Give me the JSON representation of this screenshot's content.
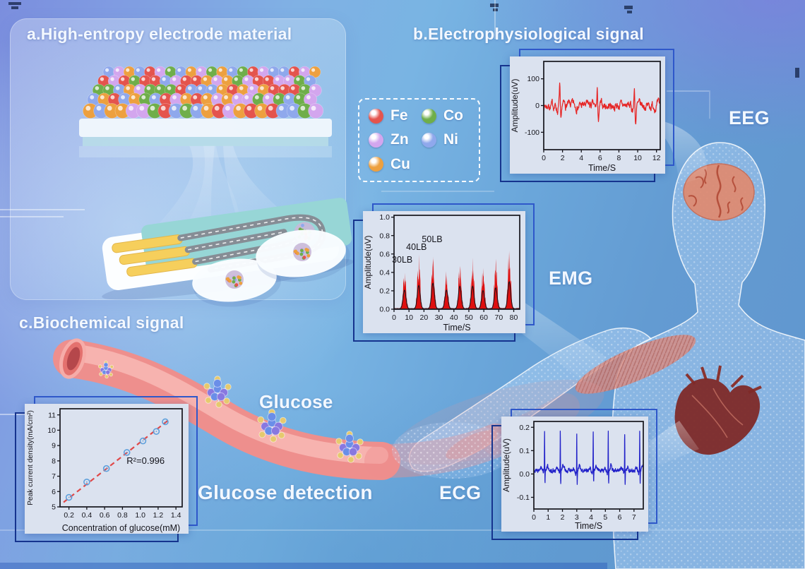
{
  "figure": {
    "panel_a_title": "a.High-entropy electrode material",
    "panel_b_title": "b.Electrophysiological signal",
    "panel_c_title": "c.Biochemical signal",
    "labels": {
      "eeg": "EEG",
      "emg": "EMG",
      "ecg": "ECG",
      "glucose": "Glucose",
      "glucose_detection": "Glucose detection"
    }
  },
  "legend": {
    "items": [
      {
        "symbol": "Fe",
        "color": "#e4544d"
      },
      {
        "symbol": "Co",
        "color": "#6fae4a"
      },
      {
        "symbol": "Zn",
        "color": "#d3a6ee"
      },
      {
        "symbol": "Ni",
        "color": "#8fa8ec"
      },
      {
        "symbol": "Cu",
        "color": "#eda03f"
      }
    ]
  },
  "colors": {
    "chart_frame_blue": "#2c52c2",
    "chart_surface": "#dbe2ef",
    "eeg_line": "#e62626",
    "emg_fill": "#de0f0f",
    "ecg_line": "#2121c9",
    "glucose_marker": "#5fa0dc",
    "glucose_fit": "#e04848",
    "vessel_pink": "#ee8f8d",
    "body_mesh_blue": "#bcd8fa"
  },
  "chart_data": [
    {
      "id": "eeg",
      "type": "line",
      "generator": "eeg",
      "xlabel": "Time/S",
      "ylabel": "Amplitude(uV)",
      "xlim": [
        0,
        12.4
      ],
      "ylim": [
        -165,
        165
      ],
      "xticks": [
        0,
        2,
        4,
        6,
        8,
        10,
        12
      ],
      "xtick_labels": [
        "0",
        "2",
        "4",
        "6",
        "8",
        "10",
        "12"
      ],
      "yticks": [
        -100,
        0,
        100
      ],
      "ytick_labels": [
        "-100",
        "0",
        "100"
      ],
      "line_color": "#e62626",
      "seed": 7,
      "noise": 9,
      "spikes": [
        [
          1.7,
          82,
          -74
        ],
        [
          5.7,
          52,
          -56
        ],
        [
          9.65,
          63,
          -62
        ]
      ],
      "annotations": []
    },
    {
      "id": "emg",
      "type": "bursts",
      "generator": "emg",
      "xlabel": "Time/S",
      "ylabel": "Amplitude(uV)",
      "xlim": [
        0,
        84
      ],
      "ylim": [
        0,
        1.02
      ],
      "xticks": [
        0,
        10,
        20,
        30,
        40,
        50,
        60,
        70,
        80
      ],
      "xtick_labels": [
        "0",
        "10",
        "20",
        "30",
        "40",
        "50",
        "60",
        "70",
        "80"
      ],
      "yticks": [
        0,
        0.2,
        0.4,
        0.6,
        0.8,
        1.0
      ],
      "ytick_labels": [
        "0.0",
        "0.2",
        "0.4",
        "0.6",
        "0.8",
        "1.0"
      ],
      "fill_color": "#de0f0f",
      "envelope_color": "#14141c",
      "seed": 11,
      "centers": [
        7,
        16.5,
        26,
        35,
        44,
        52.5,
        59.5,
        68,
        77
      ],
      "heights": [
        0.48,
        0.6,
        0.66,
        0.48,
        0.58,
        0.58,
        0.47,
        0.54,
        0.7
      ],
      "burst_width": 1.35,
      "annotations": [
        {
          "x": 5.5,
          "y": 0.505,
          "text": "30LB"
        },
        {
          "x": 15.0,
          "y": 0.645,
          "text": "40LB"
        },
        {
          "x": 25.5,
          "y": 0.73,
          "text": "50LB"
        }
      ]
    },
    {
      "id": "ecg",
      "type": "line",
      "generator": "ecg",
      "xlabel": "Time/S",
      "ylabel": "Amplitude(uV)",
      "xlim": [
        0,
        7.65
      ],
      "ylim": [
        -0.15,
        0.225
      ],
      "xticks": [
        0,
        1,
        2,
        3,
        4,
        5,
        6,
        7
      ],
      "xtick_labels": [
        "0",
        "1",
        "2",
        "3",
        "4",
        "5",
        "6",
        "7"
      ],
      "yticks": [
        -0.1,
        0,
        0.1,
        0.2
      ],
      "ytick_labels": [
        "-0.1",
        "0.0",
        "0.1",
        "0.2"
      ],
      "line_color": "#2121c9",
      "seed": 3,
      "beats": [
        0.75,
        1.85,
        3.0,
        4.15,
        5.2,
        6.35,
        7.4
      ],
      "r_peak": 0.168,
      "annotations": []
    },
    {
      "id": "glucose",
      "type": "scatter",
      "xlabel": "Concentration of glucose(mM)",
      "ylabel": "Peak current density(mA/cm²)",
      "xlim": [
        0.1,
        1.47
      ],
      "ylim": [
        5,
        11.4
      ],
      "xticks": [
        0.2,
        0.4,
        0.6,
        0.8,
        1.0,
        1.2,
        1.4
      ],
      "xtick_labels": [
        "0.2",
        "0.4",
        "0.6",
        "0.8",
        "1.0",
        "1.2",
        "1.4"
      ],
      "yticks": [
        5,
        6,
        7,
        8,
        9,
        10,
        11
      ],
      "ytick_labels": [
        "5",
        "6",
        "7",
        "8",
        "9",
        "10",
        "11"
      ],
      "marker_color": "#5fa0dc",
      "fit_color": "#e04848",
      "points": [
        [
          0.2,
          5.62
        ],
        [
          0.4,
          6.62
        ],
        [
          0.62,
          7.5
        ],
        [
          0.85,
          8.55
        ],
        [
          1.03,
          9.3
        ],
        [
          1.18,
          9.92
        ],
        [
          1.28,
          10.55
        ]
      ],
      "fit_line": [
        [
          0.14,
          5.3
        ],
        [
          1.33,
          10.72
        ]
      ],
      "annotations": [
        {
          "x": 1.06,
          "y": 7.8,
          "text": "R²=0.996"
        }
      ]
    }
  ]
}
